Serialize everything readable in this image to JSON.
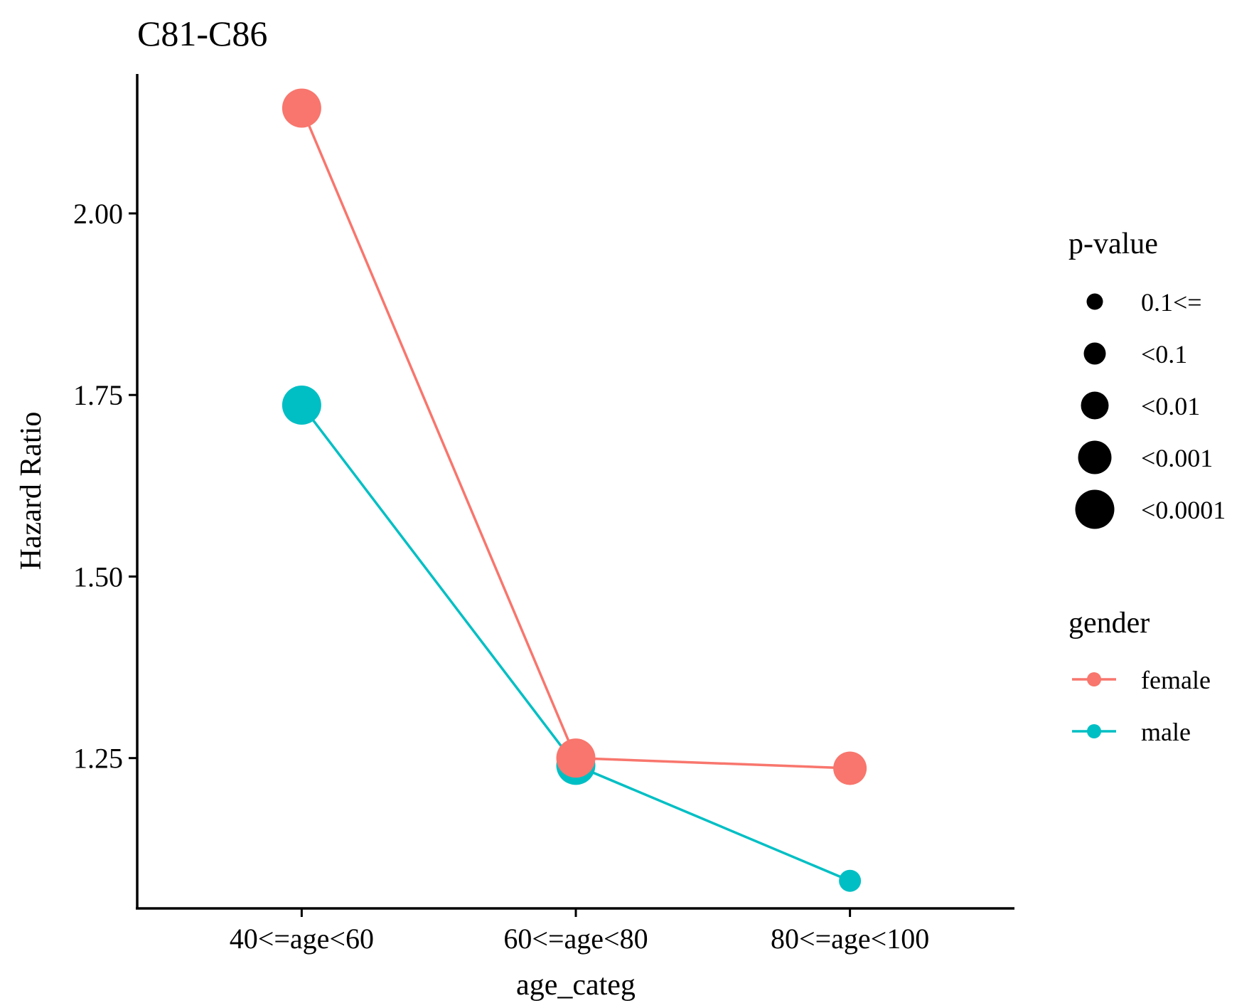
{
  "chart_data": {
    "type": "line",
    "title": "C81-C86",
    "xlabel": "age_categ",
    "ylabel": "Hazard Ratio",
    "categories": [
      "40<=age<60",
      "60<=age<80",
      "80<=age<100"
    ],
    "yticks": [
      1.25,
      1.5,
      1.75,
      2.0
    ],
    "ytick_labels": [
      "1.25",
      "1.50",
      "1.75",
      "2.00"
    ],
    "ylim": [
      1.043,
      2.192
    ],
    "grid": false,
    "series": [
      {
        "name": "female",
        "color": "#F8766D",
        "values": [
          2.145,
          1.25,
          1.236
        ],
        "pvalue": [
          "<0.0001",
          "<0.0001",
          "<0.001"
        ]
      },
      {
        "name": "male",
        "color": "#00BFC4",
        "values": [
          1.736,
          1.24,
          1.081
        ],
        "pvalue": [
          "<0.0001",
          "<0.0001",
          "<0.1"
        ]
      }
    ],
    "legend_position": "right",
    "legends": {
      "pvalue": {
        "title": "p-value",
        "levels": [
          "0.1<=",
          "<0.1",
          "<0.01",
          "<0.001",
          "<0.0001"
        ]
      },
      "gender": {
        "title": "gender",
        "levels": [
          "female",
          "male"
        ]
      }
    }
  }
}
